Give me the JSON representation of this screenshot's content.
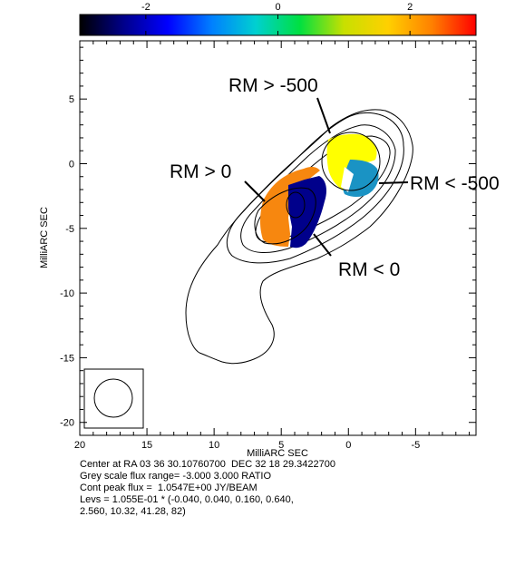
{
  "colorbar": {
    "tick_labels": [
      "-2",
      "0",
      "2"
    ],
    "tick_values": [
      -2,
      0,
      2
    ],
    "range": [
      -3.0,
      3.0
    ],
    "palette": [
      "#000000",
      "#00008b",
      "#0000ff",
      "#0080ff",
      "#00d0d0",
      "#00e040",
      "#c8e000",
      "#ffd000",
      "#ff8000",
      "#ff0000"
    ]
  },
  "axes": {
    "xlabel": "MilliARC SEC",
    "ylabel": "MilliARC SEC",
    "x_ticks": [
      "20",
      "15",
      "10",
      "5",
      "0",
      "-5"
    ],
    "y_ticks": [
      "5",
      "0",
      "-5",
      "-10",
      "-15",
      "-20"
    ],
    "xlim": [
      20,
      -9.5
    ],
    "ylim": [
      -21,
      9.5
    ]
  },
  "annotations": {
    "rm_gt_minus500": "RM > -500",
    "rm_gt_0": "RM > 0",
    "rm_lt_minus500": "RM < -500",
    "rm_lt_0": "RM < 0"
  },
  "footer": {
    "line1": "Center at RA 03 36 30.10760700  DEC 32 18 29.3422700",
    "line2": "Grey scale flux range= -3.000 3.000 RATIO",
    "line3": "Cont peak flux =  1.0547E+00 JY/BEAM",
    "line4": "Levs = 1.055E-01 * (-0.040, 0.040, 0.160, 0.640,",
    "line5": "2.560, 10.32, 41.28, 82)"
  },
  "colors": {
    "orange": "#f7870f",
    "dark_blue": "#00008b",
    "yellow": "#ffff00",
    "cyan_blue": "#1a93c4"
  }
}
